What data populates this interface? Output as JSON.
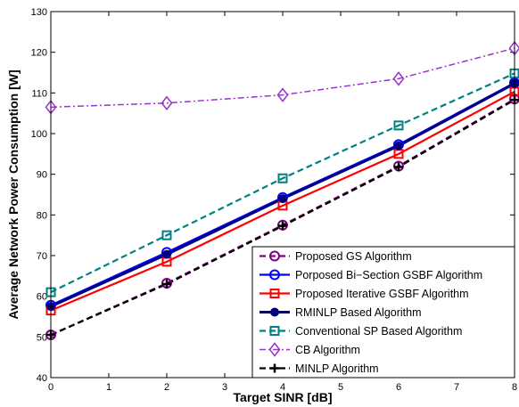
{
  "chart_data": {
    "type": "line",
    "xlabel": "Target SINR [dB]",
    "ylabel": "Average Network Power Consumption [W]",
    "xlim": [
      0,
      8
    ],
    "ylim": [
      40,
      130
    ],
    "xticks": [
      0,
      1,
      2,
      3,
      4,
      5,
      6,
      7,
      8
    ],
    "yticks": [
      40,
      50,
      60,
      70,
      80,
      90,
      100,
      110,
      120,
      130
    ],
    "grid": false,
    "legend_position": "bottom-right",
    "x": [
      0,
      2,
      4,
      6,
      8
    ],
    "series": [
      {
        "name": "Proposed GS Algorithm",
        "values": [
          50.5,
          63.2,
          77.5,
          92.0,
          108.5
        ],
        "color": "#7F007F",
        "dash": "dashed",
        "marker": "circle"
      },
      {
        "name": "Porposed Bi−Section GSBF Algorithm",
        "values": [
          57.8,
          70.8,
          84.3,
          97.3,
          112.5
        ],
        "color": "#0000FF",
        "dash": "solid",
        "marker": "circle"
      },
      {
        "name": "Proposed Iterative GSBF Algorithm",
        "values": [
          56.5,
          68.5,
          82.3,
          95.0,
          110.3
        ],
        "color": "#FF0000",
        "dash": "solid",
        "marker": "square"
      },
      {
        "name": "RMINLP Based Algorithm",
        "values": [
          57.5,
          70.3,
          84.0,
          97.0,
          112.3
        ],
        "color": "#000080",
        "dash": "solid",
        "marker": "filled-circle"
      },
      {
        "name": "Conventional SP Based Algorithm",
        "values": [
          61.0,
          75.0,
          89.0,
          102.0,
          114.8
        ],
        "color": "#008080",
        "dash": "dashed",
        "marker": "square"
      },
      {
        "name": "CB Algorithm",
        "values": [
          106.5,
          107.5,
          109.5,
          113.5,
          121.0
        ],
        "color": "#9933CC",
        "dash": "dashdot",
        "marker": "diamond"
      },
      {
        "name": "MINLP Algorithm",
        "values": [
          50.5,
          63.0,
          77.3,
          91.8,
          108.3
        ],
        "color": "#000000",
        "dash": "dashed",
        "marker": "plus"
      }
    ]
  }
}
